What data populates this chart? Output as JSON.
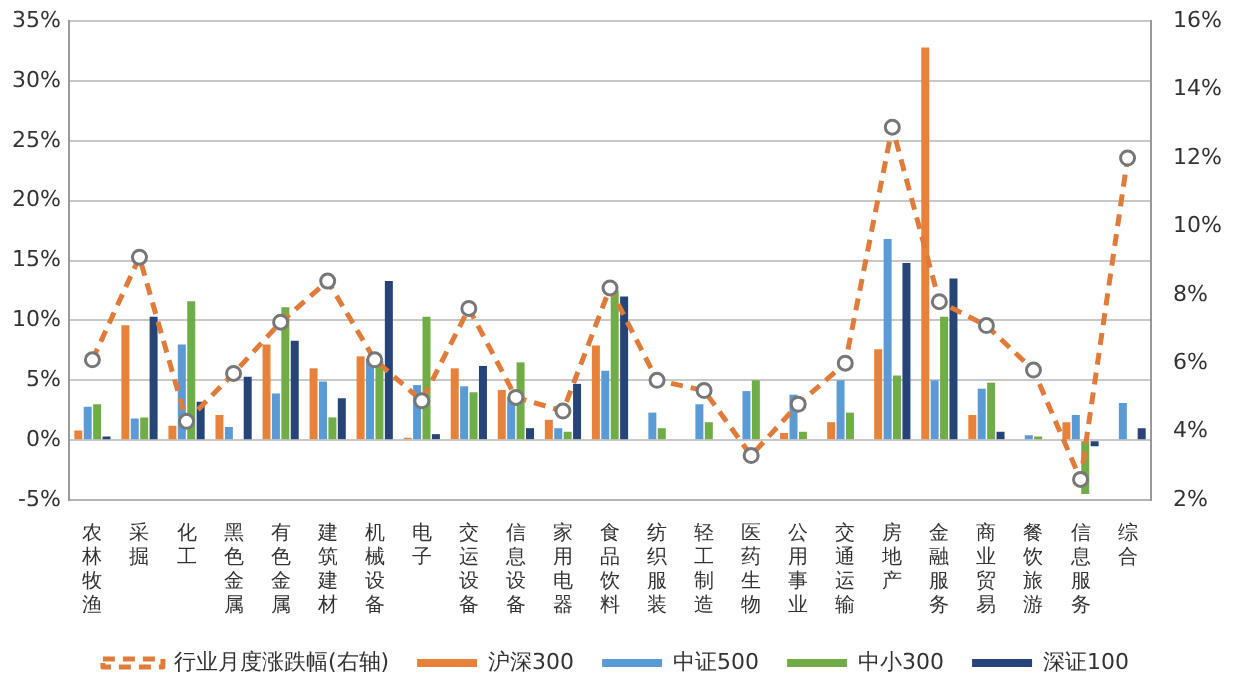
{
  "chart_data": {
    "type": "bar",
    "categories": [
      "农林牧渔",
      "采掘",
      "化工",
      "黑色金属",
      "有色金属",
      "建筑建材",
      "机械设备",
      "电子",
      "交运设备",
      "信息设备",
      "家用电器",
      "食品饮料",
      "纺织服装",
      "轻工制造",
      "医药生物",
      "公用事业",
      "交通运输",
      "房地产",
      "金融服务",
      "商业贸易",
      "餐饮旅游",
      "信息服务",
      "综合"
    ],
    "series": [
      {
        "name": "沪深300",
        "color": "#e8823a",
        "values": [
          0.8,
          9.6,
          1.2,
          2.1,
          8.0,
          6.0,
          7.0,
          0.2,
          6.0,
          4.2,
          1.7,
          7.9,
          0,
          0,
          0,
          0.6,
          1.5,
          7.6,
          32.8,
          2.1,
          0,
          1.5,
          null
        ]
      },
      {
        "name": "中证500",
        "color": "#5b9bd5",
        "values": [
          2.8,
          1.8,
          8.0,
          1.1,
          3.9,
          4.9,
          6.8,
          4.6,
          4.5,
          3.6,
          1.0,
          5.8,
          2.3,
          3.0,
          4.1,
          3.8,
          5.0,
          16.8,
          5.0,
          4.3,
          0.4,
          2.1,
          3.1
        ]
      },
      {
        "name": "中小300",
        "color": "#70ad47",
        "values": [
          3.0,
          1.9,
          11.6,
          0,
          11.1,
          1.9,
          6.6,
          10.3,
          4.0,
          6.5,
          0.7,
          12.5,
          1.0,
          1.5,
          5.0,
          0.7,
          2.3,
          5.4,
          10.3,
          4.8,
          0.3,
          -4.5,
          0
        ]
      },
      {
        "name": "深证100",
        "color": "#264478",
        "values": [
          0.3,
          10.3,
          3.2,
          5.3,
          8.3,
          3.5,
          13.3,
          0.5,
          6.2,
          1.0,
          4.7,
          12.0,
          0,
          0,
          0,
          0,
          0,
          14.8,
          13.5,
          0.7,
          0,
          -0.5,
          1.0
        ]
      },
      {
        "name": "行业月度涨跌幅(右轴)",
        "type": "line",
        "axis": "y2",
        "color": "#e07b39",
        "line_style": "dashed",
        "marker": "circle",
        "values": [
          6.1,
          9.1,
          4.3,
          5.7,
          7.2,
          8.4,
          6.1,
          4.9,
          7.6,
          5.0,
          4.6,
          8.2,
          5.5,
          5.2,
          3.3,
          4.8,
          6.0,
          12.9,
          7.8,
          7.1,
          5.8,
          2.6,
          12.0
        ]
      }
    ],
    "ylim": [
      -5,
      35
    ],
    "yticks": [
      {
        "value": -5,
        "label": "-5%"
      },
      {
        "value": 0,
        "label": "0%"
      },
      {
        "value": 5,
        "label": "5%"
      },
      {
        "value": 10,
        "label": "10%"
      },
      {
        "value": 15,
        "label": "15%"
      },
      {
        "value": 20,
        "label": "20%"
      },
      {
        "value": 25,
        "label": "25%"
      },
      {
        "value": 30,
        "label": "30%"
      },
      {
        "value": 35,
        "label": "35%"
      }
    ],
    "y2lim": [
      2,
      16
    ],
    "y2ticks": [
      {
        "value": 2,
        "label": "2%"
      },
      {
        "value": 4,
        "label": "4%"
      },
      {
        "value": 6,
        "label": "6%"
      },
      {
        "value": 8,
        "label": "8%"
      },
      {
        "value": 10,
        "label": "10%"
      },
      {
        "value": 12,
        "label": "12%"
      },
      {
        "value": 14,
        "label": "14%"
      },
      {
        "value": 16,
        "label": "16%"
      }
    ],
    "grid": "y",
    "legend": "bottom"
  }
}
